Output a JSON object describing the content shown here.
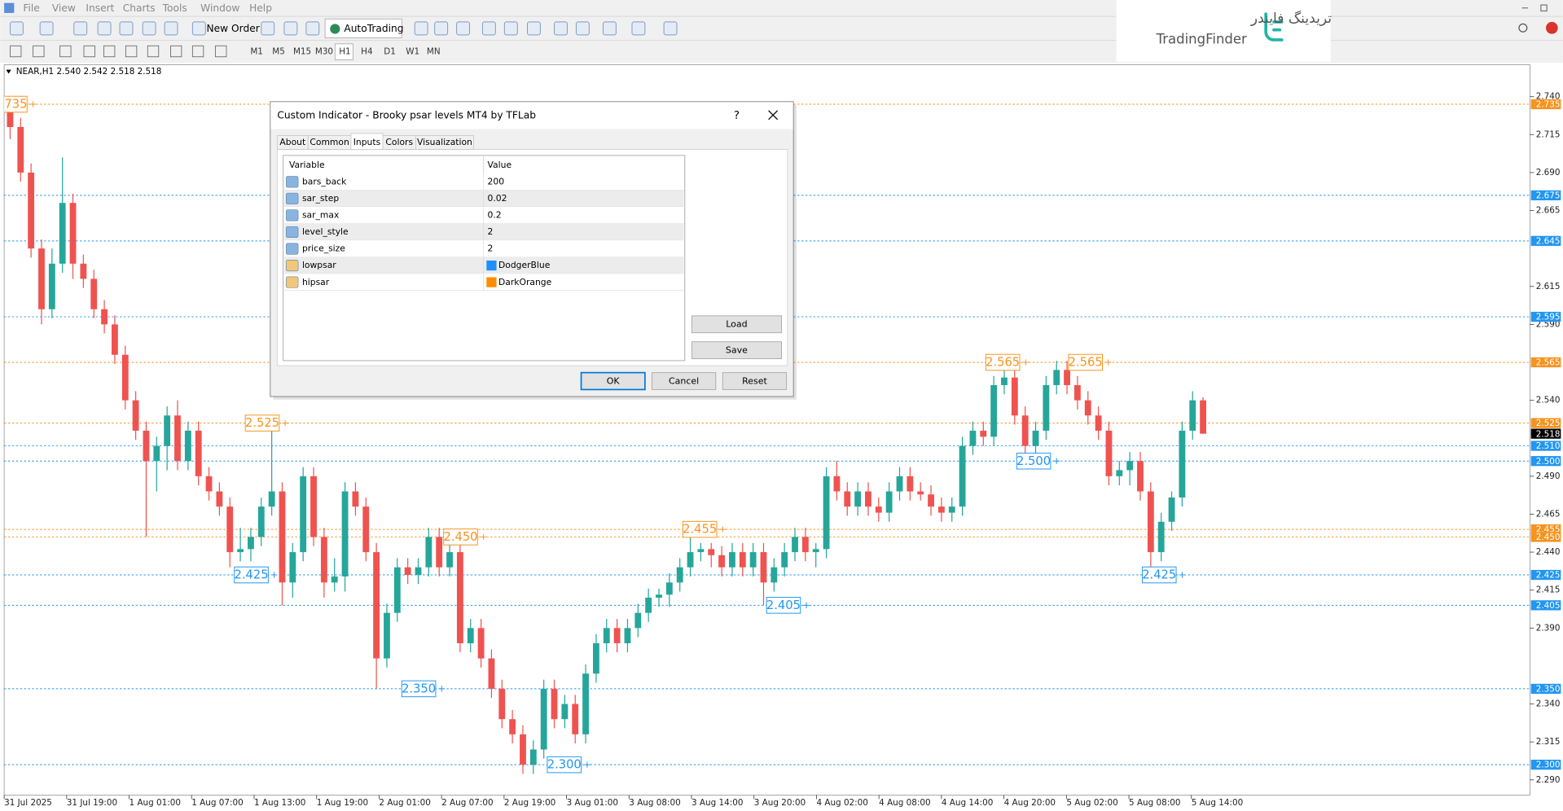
{
  "menu": [
    "File",
    "View",
    "Insert",
    "Charts",
    "Tools",
    "Window",
    "Help"
  ],
  "toolbar": {
    "new_order": "New Order",
    "auto_trading": "AutoTrading",
    "timeframes": [
      "M1",
      "M5",
      "M15",
      "M30",
      "H1",
      "H4",
      "D1",
      "W1",
      "MN"
    ]
  },
  "logo": {
    "persian": "تریدینگ فایندر",
    "latin": "TradingFinder"
  },
  "chart": {
    "type": "candlestick",
    "header": "NEAR,H1  2.540 2.542 2.518 2.518",
    "ylim": [
      2.28,
      2.761
    ],
    "yticks": [
      {
        "value": 2.74,
        "label": "2.740"
      },
      2.715,
      {
        "value": 2.69,
        "label": "2.690"
      },
      2.665,
      2.615,
      {
        "value": 2.59,
        "label": "2.590"
      },
      {
        "value": 2.54,
        "label": "2.540"
      },
      {
        "value": 2.49,
        "label": "2.490"
      },
      2.465,
      {
        "value": 2.44,
        "label": "2.440"
      },
      2.415,
      {
        "value": 2.39,
        "label": "2.390"
      },
      {
        "value": 2.34,
        "label": "2.340"
      },
      2.315,
      {
        "value": 2.29,
        "label": "2.290"
      }
    ],
    "x_labels": [
      "31 Jul 2025",
      "31 Jul 19:00",
      "1 Aug 01:00",
      "1 Aug 07:00",
      "1 Aug 13:00",
      "1 Aug 19:00",
      "2 Aug 01:00",
      "2 Aug 07:00",
      "2 Aug 19:00",
      "3 Aug 01:00",
      "3 Aug 08:00",
      "3 Aug 14:00",
      "3 Aug 20:00",
      "4 Aug 02:00",
      "4 Aug 08:00",
      "4 Aug 14:00",
      "4 Aug 20:00",
      "5 Aug 02:00",
      "5 Aug 08:00",
      "5 Aug 14:00"
    ],
    "up_color": "#26a69a",
    "down_color": "#ef5350",
    "current_price": 2.518,
    "levels": [
      {
        "value": 2.735,
        "label": "2.735",
        "color": "#f7931e"
      },
      {
        "value": 2.675,
        "label": "2.675",
        "color": "#2196f3"
      },
      {
        "value": 2.645,
        "label": "2.645",
        "color": "#2196f3"
      },
      {
        "value": 2.595,
        "label": "2.595",
        "color": "#2196f3"
      },
      {
        "value": 2.565,
        "label": "2.565",
        "color": "#f7931e"
      },
      {
        "value": 2.525,
        "label": "2.525",
        "color": "#f7931e"
      },
      {
        "value": 2.51,
        "label": "2.510",
        "color": "#2196f3"
      },
      {
        "value": 2.5,
        "label": "2.500",
        "color": "#2196f3"
      },
      {
        "value": 2.455,
        "label": "2.455",
        "color": "#f7931e"
      },
      {
        "value": 2.45,
        "label": "2.450",
        "color": "#f7931e"
      },
      {
        "value": 2.425,
        "label": "2.425",
        "color": "#2196f3"
      },
      {
        "value": 2.405,
        "label": "2.405",
        "color": "#2196f3"
      },
      {
        "value": 2.35,
        "label": "2.350",
        "color": "#2196f3"
      },
      {
        "value": 2.3,
        "label": "2.300",
        "color": "#2196f3"
      }
    ],
    "candles": [
      [
        2.73,
        2.74,
        2.712,
        2.72
      ],
      [
        2.72,
        2.726,
        2.684,
        2.69
      ],
      [
        2.69,
        2.696,
        2.634,
        2.64
      ],
      [
        2.64,
        2.646,
        2.59,
        2.6
      ],
      [
        2.6,
        2.64,
        2.594,
        2.63
      ],
      [
        2.63,
        2.7,
        2.624,
        2.67
      ],
      [
        2.67,
        2.676,
        2.62,
        2.63
      ],
      [
        2.63,
        2.636,
        2.614,
        2.62
      ],
      [
        2.62,
        2.626,
        2.594,
        2.6
      ],
      [
        2.6,
        2.606,
        2.584,
        2.59
      ],
      [
        2.59,
        2.596,
        2.564,
        2.57
      ],
      [
        2.57,
        2.576,
        2.534,
        2.54
      ],
      [
        2.54,
        2.546,
        2.514,
        2.52
      ],
      [
        2.52,
        2.526,
        2.45,
        2.5
      ],
      [
        2.5,
        2.516,
        2.48,
        2.51
      ],
      [
        2.51,
        2.536,
        2.494,
        2.53
      ],
      [
        2.53,
        2.54,
        2.494,
        2.5
      ],
      [
        2.5,
        2.526,
        2.494,
        2.52
      ],
      [
        2.52,
        2.526,
        2.484,
        2.49
      ],
      [
        2.49,
        2.496,
        2.474,
        2.48
      ],
      [
        2.48,
        2.486,
        2.464,
        2.47
      ],
      [
        2.47,
        2.476,
        2.43,
        2.44
      ],
      [
        2.44,
        2.456,
        2.434,
        2.442
      ],
      [
        2.442,
        2.456,
        2.434,
        2.45
      ],
      [
        2.45,
        2.476,
        2.444,
        2.47
      ],
      [
        2.47,
        2.525,
        2.464,
        2.48
      ],
      [
        2.48,
        2.486,
        2.405,
        2.42
      ],
      [
        2.42,
        2.446,
        2.41,
        2.44
      ],
      [
        2.44,
        2.496,
        2.434,
        2.49
      ],
      [
        2.49,
        2.496,
        2.444,
        2.45
      ],
      [
        2.45,
        2.456,
        2.41,
        2.42
      ],
      [
        2.42,
        2.436,
        2.414,
        2.424
      ],
      [
        2.424,
        2.486,
        2.414,
        2.48
      ],
      [
        2.48,
        2.486,
        2.464,
        2.47
      ],
      [
        2.47,
        2.476,
        2.434,
        2.44
      ],
      [
        2.44,
        2.446,
        2.35,
        2.37
      ],
      [
        2.37,
        2.406,
        2.364,
        2.4
      ],
      [
        2.4,
        2.436,
        2.394,
        2.43
      ],
      [
        2.43,
        2.436,
        2.419,
        2.425
      ],
      [
        2.425,
        2.436,
        2.419,
        2.43
      ],
      [
        2.43,
        2.456,
        2.424,
        2.45
      ],
      [
        2.45,
        2.456,
        2.424,
        2.43
      ],
      [
        2.43,
        2.446,
        2.424,
        2.44
      ],
      [
        2.44,
        2.446,
        2.374,
        2.38
      ],
      [
        2.38,
        2.396,
        2.374,
        2.39
      ],
      [
        2.39,
        2.396,
        2.364,
        2.37
      ],
      [
        2.37,
        2.376,
        2.344,
        2.35
      ],
      [
        2.35,
        2.356,
        2.324,
        2.33
      ],
      [
        2.33,
        2.336,
        2.314,
        2.32
      ],
      [
        2.32,
        2.326,
        2.294,
        2.3
      ],
      [
        2.3,
        2.316,
        2.294,
        2.31
      ],
      [
        2.31,
        2.356,
        2.304,
        2.35
      ],
      [
        2.35,
        2.356,
        2.324,
        2.33
      ],
      [
        2.33,
        2.346,
        2.324,
        2.34
      ],
      [
        2.34,
        2.346,
        2.314,
        2.32
      ],
      [
        2.32,
        2.366,
        2.314,
        2.36
      ],
      [
        2.36,
        2.386,
        2.354,
        2.38
      ],
      [
        2.38,
        2.396,
        2.374,
        2.39
      ],
      [
        2.39,
        2.396,
        2.374,
        2.38
      ],
      [
        2.38,
        2.396,
        2.374,
        2.39
      ],
      [
        2.39,
        2.406,
        2.384,
        2.4
      ],
      [
        2.4,
        2.416,
        2.394,
        2.41
      ],
      [
        2.41,
        2.416,
        2.404,
        2.412
      ],
      [
        2.412,
        2.426,
        2.404,
        2.42
      ],
      [
        2.42,
        2.436,
        2.414,
        2.43
      ],
      [
        2.43,
        2.455,
        2.424,
        2.44
      ],
      [
        2.44,
        2.446,
        2.434,
        2.442
      ],
      [
        2.442,
        2.446,
        2.43,
        2.438
      ],
      [
        2.438,
        2.444,
        2.424,
        2.43
      ],
      [
        2.43,
        2.446,
        2.424,
        2.44
      ],
      [
        2.44,
        2.446,
        2.424,
        2.43
      ],
      [
        2.43,
        2.446,
        2.424,
        2.44
      ],
      [
        2.44,
        2.446,
        2.405,
        2.42
      ],
      [
        2.42,
        2.436,
        2.414,
        2.43
      ],
      [
        2.43,
        2.446,
        2.424,
        2.44
      ],
      [
        2.44,
        2.456,
        2.434,
        2.45
      ],
      [
        2.45,
        2.456,
        2.434,
        2.44
      ],
      [
        2.44,
        2.446,
        2.43,
        2.442
      ],
      [
        2.442,
        2.496,
        2.436,
        2.49
      ],
      [
        2.49,
        2.5,
        2.474,
        2.48
      ],
      [
        2.48,
        2.486,
        2.464,
        2.47
      ],
      [
        2.47,
        2.486,
        2.464,
        2.48
      ],
      [
        2.48,
        2.486,
        2.464,
        2.47
      ],
      [
        2.47,
        2.476,
        2.46,
        2.466
      ],
      [
        2.466,
        2.486,
        2.46,
        2.48
      ],
      [
        2.48,
        2.496,
        2.474,
        2.49
      ],
      [
        2.49,
        2.496,
        2.474,
        2.48
      ],
      [
        2.48,
        2.486,
        2.474,
        2.478
      ],
      [
        2.478,
        2.484,
        2.464,
        2.47
      ],
      [
        2.47,
        2.476,
        2.46,
        2.466
      ],
      [
        2.466,
        2.476,
        2.46,
        2.47
      ],
      [
        2.47,
        2.516,
        2.464,
        2.51
      ],
      [
        2.51,
        2.526,
        2.504,
        2.52
      ],
      [
        2.52,
        2.526,
        2.51,
        2.516
      ],
      [
        2.516,
        2.556,
        2.51,
        2.55
      ],
      [
        2.55,
        2.565,
        2.544,
        2.555
      ],
      [
        2.555,
        2.561,
        2.524,
        2.53
      ],
      [
        2.53,
        2.536,
        2.5,
        2.51
      ],
      [
        2.51,
        2.526,
        2.5,
        2.52
      ],
      [
        2.52,
        2.556,
        2.514,
        2.55
      ],
      [
        2.55,
        2.566,
        2.544,
        2.56
      ],
      [
        2.56,
        2.566,
        2.544,
        2.55
      ],
      [
        2.55,
        2.556,
        2.534,
        2.54
      ],
      [
        2.54,
        2.546,
        2.524,
        2.53
      ],
      [
        2.53,
        2.536,
        2.514,
        2.52
      ],
      [
        2.52,
        2.526,
        2.484,
        2.49
      ],
      [
        2.49,
        2.5,
        2.484,
        2.494
      ],
      [
        2.494,
        2.506,
        2.484,
        2.5
      ],
      [
        2.5,
        2.506,
        2.474,
        2.48
      ],
      [
        2.48,
        2.486,
        2.425,
        2.44
      ],
      [
        2.44,
        2.466,
        2.434,
        2.46
      ],
      [
        2.46,
        2.48,
        2.454,
        2.476
      ],
      [
        2.476,
        2.526,
        2.47,
        2.52
      ],
      [
        2.52,
        2.546,
        2.514,
        2.54
      ],
      [
        2.54,
        2.542,
        2.518,
        2.518
      ]
    ]
  },
  "dialog": {
    "title": "Custom Indicator - Brooky psar levels MT4 by TFLab",
    "help": "?",
    "tabs": [
      "About",
      "Common",
      "Inputs",
      "Colors",
      "Visualization"
    ],
    "table": {
      "header": [
        "Variable",
        "Value"
      ],
      "rows": [
        [
          "bars_back",
          "200"
        ],
        [
          "sar_step",
          "0.02"
        ],
        [
          "sar_max",
          "0.2"
        ],
        [
          "level_style",
          "2"
        ],
        [
          "price_size",
          "2"
        ],
        [
          "lowpsar",
          "DodgerBlue"
        ],
        [
          "hipsar",
          "DarkOrange"
        ]
      ]
    },
    "buttons": {
      "load": "Load",
      "save": "Save",
      "ok": "OK",
      "cancel": "Cancel",
      "reset": "Reset"
    }
  }
}
